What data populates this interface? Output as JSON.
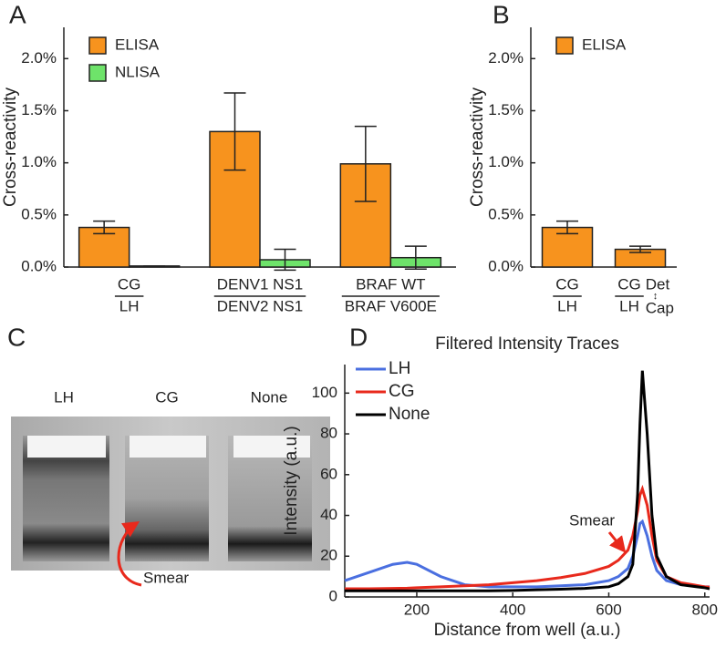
{
  "chart_data": [
    {
      "type": "bar",
      "panel": "A",
      "ylabel": "Cross-reactivity",
      "categories": [
        [
          "CG",
          "LH"
        ],
        [
          "DENV1 NS1",
          "DENV2 NS1"
        ],
        [
          "BRAF WT",
          "BRAF V600E"
        ]
      ],
      "series": [
        {
          "name": "ELISA",
          "color": "#f7931e",
          "values": [
            0.38,
            1.3,
            0.99
          ],
          "errors": [
            0.06,
            0.37,
            0.36
          ]
        },
        {
          "name": "NLISA",
          "color": "#6ee36a",
          "values": [
            0.01,
            0.07,
            0.09
          ],
          "errors": [
            0,
            0.1,
            0.11
          ]
        }
      ],
      "ylim": [
        0,
        2.3
      ],
      "yticks": [
        {
          "value": 0,
          "label": "0.0%"
        },
        {
          "value": 0.5,
          "label": "0.5%"
        },
        {
          "value": 1.0,
          "label": "1.0%"
        },
        {
          "value": 1.5,
          "label": "1.5%"
        },
        {
          "value": 2.0,
          "label": "2.0%"
        }
      ],
      "legend": "upper left"
    },
    {
      "type": "bar",
      "panel": "B",
      "ylabel": "Cross-reactivity",
      "categories": [
        [
          "CG",
          "LH"
        ],
        [
          "CG",
          "LH",
          "Det",
          "↕",
          "Cap"
        ]
      ],
      "series": [
        {
          "name": "ELISA",
          "color": "#f7931e",
          "values": [
            0.38,
            0.17
          ],
          "errors": [
            0.06,
            0.03
          ]
        }
      ],
      "ylim": [
        0,
        2.3
      ],
      "yticks": [
        {
          "value": 0,
          "label": "0.0%"
        },
        {
          "value": 0.5,
          "label": "0.5%"
        },
        {
          "value": 1.0,
          "label": "1.0%"
        },
        {
          "value": 1.5,
          "label": "1.5%"
        },
        {
          "value": 2.0,
          "label": "2.0%"
        }
      ],
      "legend": "upper left"
    },
    {
      "type": "line",
      "panel": "D",
      "title": "Filtered Intensity Traces",
      "xlabel": "Distance from well (a.u.)",
      "ylabel": "Intensity (a.u.)",
      "x": [
        50,
        100,
        150,
        180,
        200,
        250,
        300,
        350,
        400,
        450,
        500,
        550,
        600,
        620,
        640,
        650,
        660,
        665,
        670,
        680,
        690,
        700,
        720,
        750,
        800,
        810
      ],
      "series": [
        {
          "name": "LH",
          "color": "#4a6fe0",
          "values": [
            8,
            12,
            16,
            17,
            16,
            10,
            6,
            5,
            5,
            5,
            5.5,
            6,
            8,
            10,
            14,
            20,
            30,
            36,
            37,
            30,
            20,
            13,
            8,
            6,
            5,
            5
          ]
        },
        {
          "name": "CG",
          "color": "#e8291c",
          "values": [
            4,
            4,
            4.2,
            4.3,
            4.5,
            5,
            5.5,
            6,
            7,
            8,
            9.5,
            11.5,
            15,
            18,
            23,
            30,
            42,
            50,
            53,
            45,
            30,
            18,
            10,
            7,
            5,
            4.8
          ]
        },
        {
          "name": "None",
          "color": "#000000",
          "values": [
            3,
            3,
            3,
            3,
            3,
            3,
            3,
            3,
            3.2,
            3.5,
            3.8,
            4.2,
            5,
            6.5,
            10,
            16,
            50,
            85,
            111,
            80,
            40,
            20,
            10,
            6,
            4.5,
            4
          ]
        }
      ],
      "xlim": [
        50,
        810
      ],
      "ylim": [
        0,
        114
      ],
      "xticks": [
        200,
        400,
        600,
        800
      ],
      "yticks": [
        0,
        20,
        40,
        60,
        80,
        100
      ],
      "legend": "upper left",
      "annotation": "Smear"
    }
  ],
  "gel": {
    "panel": "C",
    "lanes": [
      "LH",
      "CG",
      "None"
    ],
    "lane_colors": [
      "#4a6fe0",
      "#e8291c",
      "#000000"
    ],
    "annotation": "Smear"
  }
}
